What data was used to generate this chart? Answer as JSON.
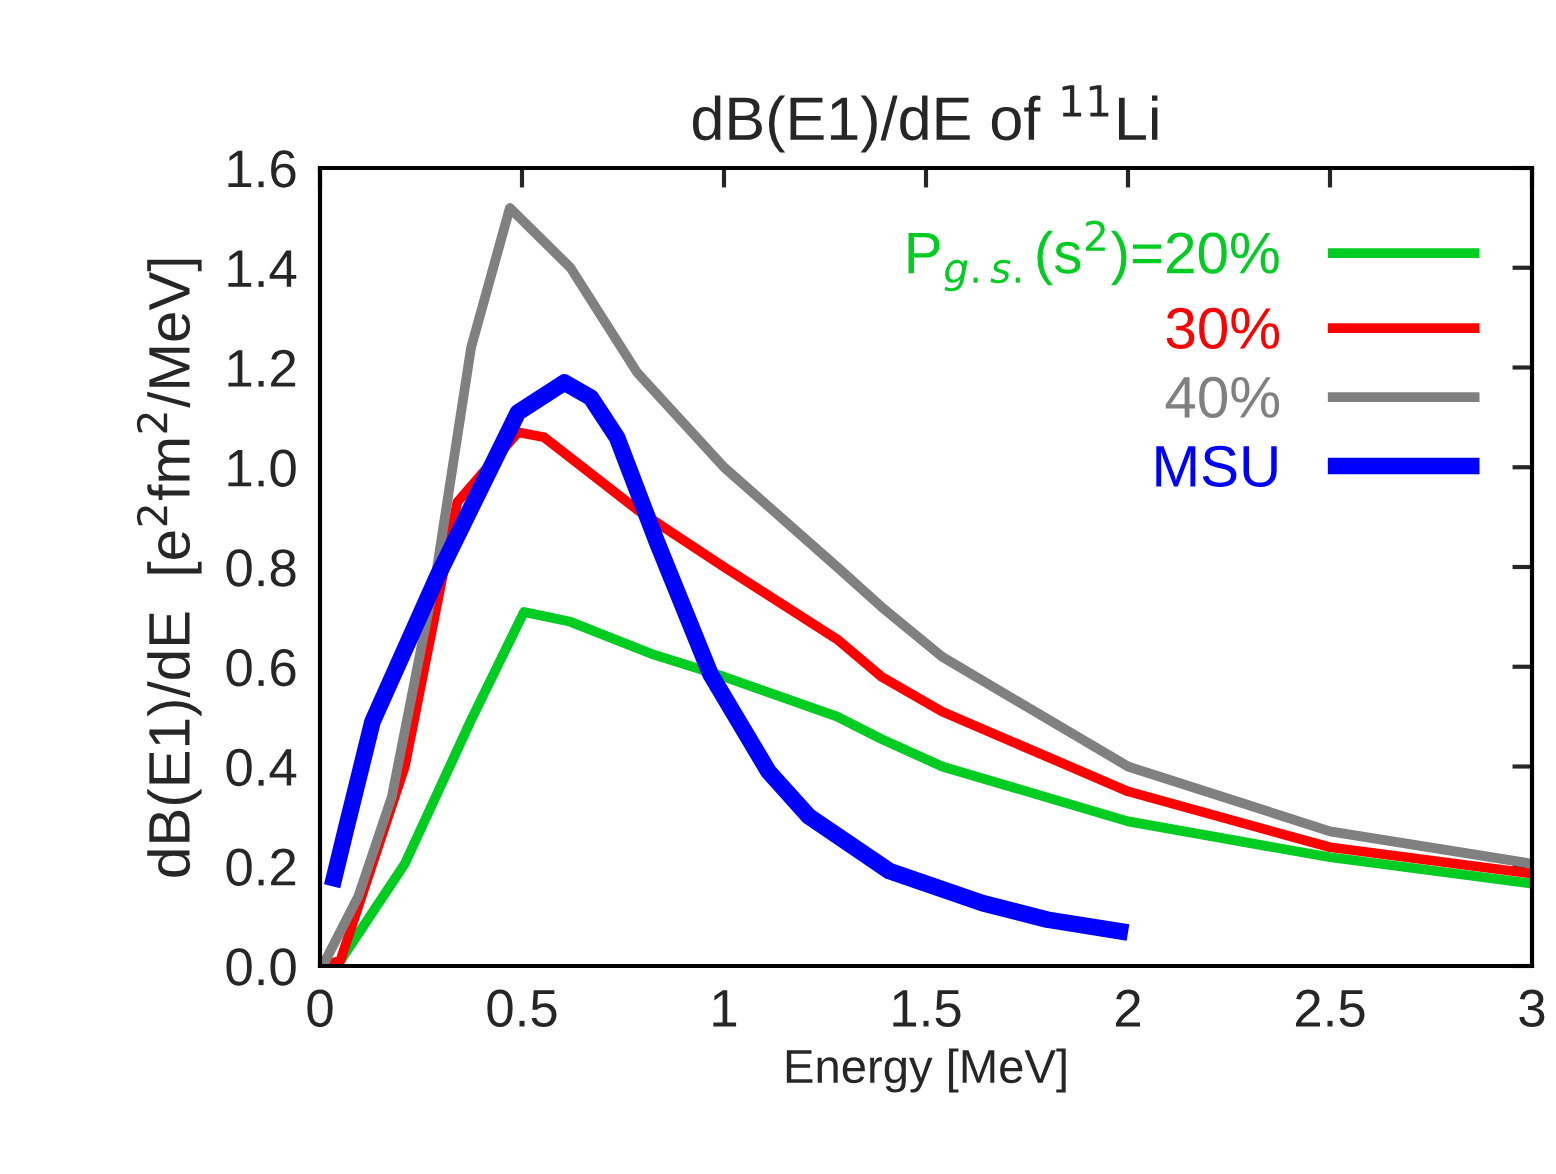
{
  "chart_data": {
    "type": "line",
    "title": "dB(E1)/dE of $^{11}$Li",
    "xlabel": "Energy [MeV]",
    "ylabel": "dB(E1)/dE  [e$^{2}$fm$^{2}$/MeV]",
    "xlim": [
      0,
      3
    ],
    "ylim": [
      0,
      1.6
    ],
    "xticks": [
      0,
      0.5,
      1,
      1.5,
      2,
      2.5,
      3
    ],
    "yticks": [
      {
        "value": 0,
        "label": "0.0"
      },
      {
        "value": 0.2,
        "label": "0.2"
      },
      {
        "value": 0.4,
        "label": "0.4"
      },
      {
        "value": 0.6,
        "label": "0.6"
      },
      {
        "value": 0.8,
        "label": "0.8"
      },
      {
        "value": 1.0,
        "label": "1.0"
      },
      {
        "value": 1.2,
        "label": "1.2"
      },
      {
        "value": 1.4,
        "label": "1.4"
      },
      {
        "value": 1.6,
        "label": "1.6"
      }
    ],
    "grid": false,
    "legend": "top right",
    "marker": "none",
    "line_style": "solid",
    "series": [
      {
        "name": "P$_{g.s.}$(s$^{2}$)=20%",
        "color": "#00cc22",
        "x": [
          0,
          0.05,
          0.21,
          0.375,
          0.505,
          0.62,
          0.82,
          1.0,
          1.28,
          1.39,
          1.54,
          2.0,
          2.5,
          3.0
        ],
        "values": [
          0,
          0.01,
          0.205,
          0.495,
          0.71,
          0.69,
          0.626,
          0.58,
          0.5,
          0.455,
          0.4,
          0.29,
          0.218,
          0.165
        ]
      },
      {
        "name": "30%",
        "color": "#ff0000",
        "x": [
          0,
          0.05,
          0.21,
          0.34,
          0.49,
          0.555,
          0.785,
          1.0,
          1.28,
          1.39,
          1.54,
          2.0,
          2.5,
          3.0
        ],
        "values": [
          0,
          0.01,
          0.4,
          0.93,
          1.07,
          1.06,
          0.915,
          0.8,
          0.655,
          0.58,
          0.51,
          0.35,
          0.238,
          0.185
        ]
      },
      {
        "name": "40%",
        "color": "#808080",
        "x": [
          0,
          0.013,
          0.095,
          0.178,
          0.29,
          0.374,
          0.47,
          0.62,
          0.785,
          1.0,
          1.28,
          1.39,
          1.54,
          2.0,
          2.5,
          3.0
        ],
        "values": [
          0,
          0.01,
          0.14,
          0.34,
          0.8,
          1.24,
          1.52,
          1.4,
          1.19,
          1.0,
          0.8,
          0.72,
          0.62,
          0.4,
          0.27,
          0.205
        ]
      },
      {
        "name": "MSU",
        "color": "#0000ff",
        "x": [
          0.03,
          0.063,
          0.13,
          0.29,
          0.49,
          0.605,
          0.67,
          0.735,
          0.834,
          0.966,
          1.11,
          1.21,
          1.41,
          1.64,
          1.8,
          2.0
        ],
        "values": [
          0.16,
          0.27,
          0.49,
          0.78,
          1.11,
          1.17,
          1.14,
          1.06,
          0.85,
          0.586,
          0.39,
          0.3,
          0.19,
          0.126,
          0.093,
          0.067
        ]
      }
    ]
  }
}
